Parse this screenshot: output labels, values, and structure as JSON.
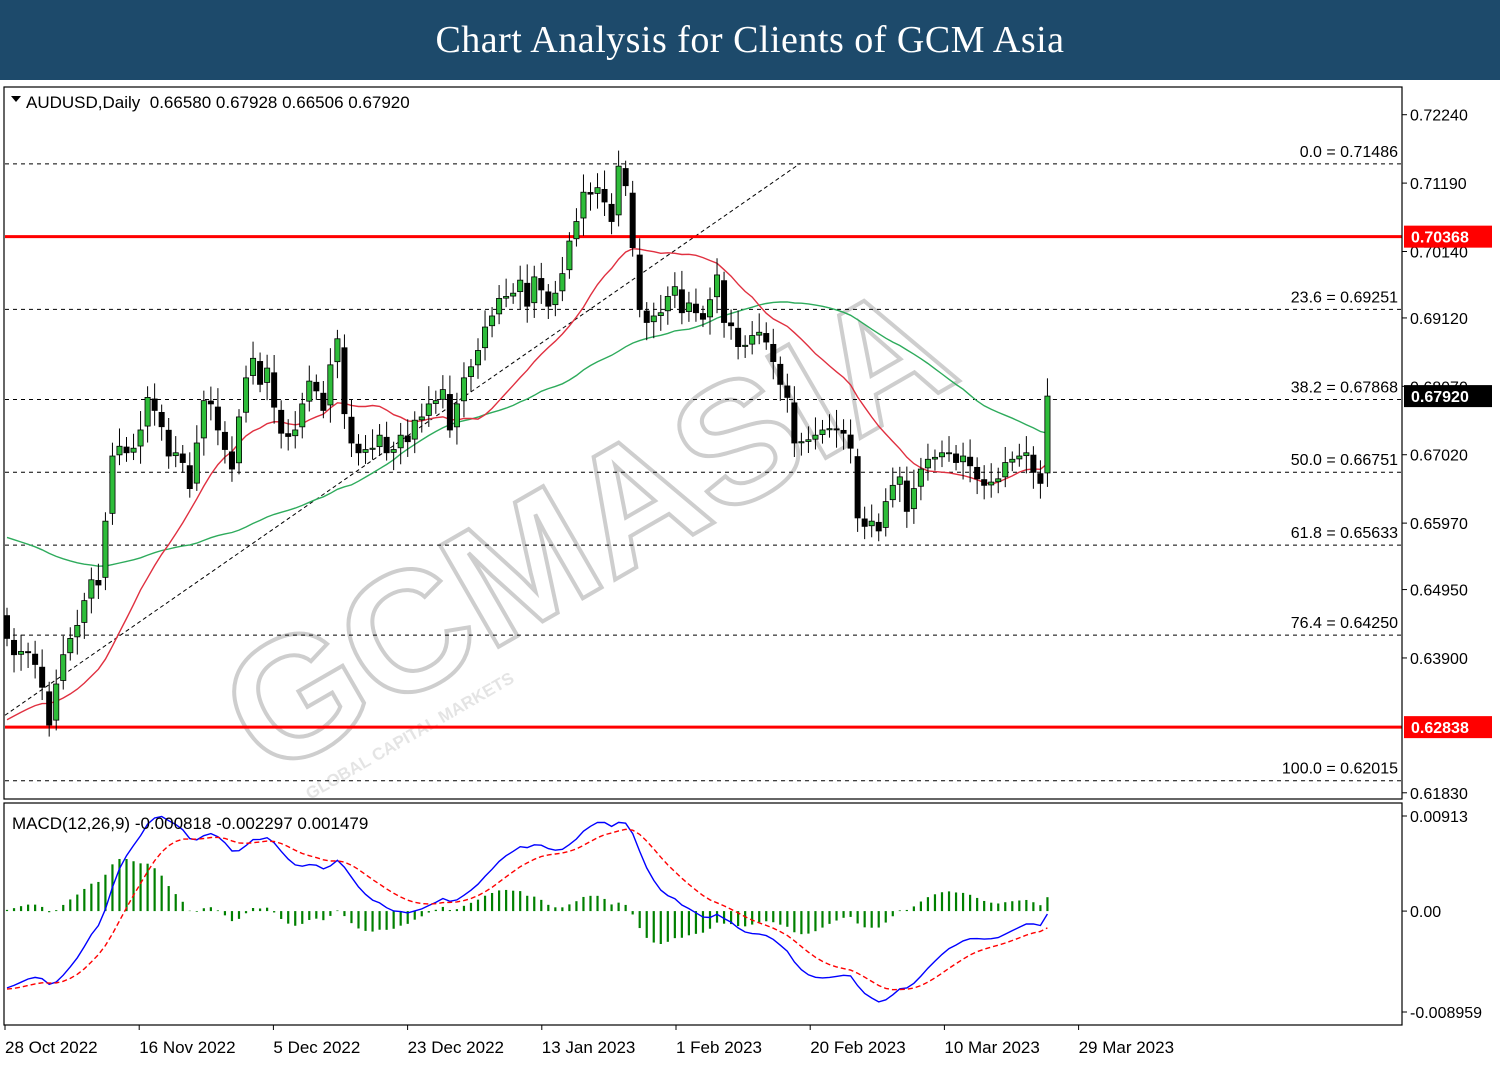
{
  "header": {
    "title": "Chart Analysis for Clients of GCM Asia"
  },
  "watermark": {
    "text": "GCMASIA",
    "subtext": "GLOBAL CAPITAL MARKETS"
  },
  "chart_data": {
    "type": "candlestick",
    "symbol_line": "AUDUSD,Daily  0.66580 0.67928 0.66506 0.67920",
    "price_axis": {
      "ylim": [
        0.6175,
        0.7265
      ],
      "ticks": [
        "0.72240",
        "0.71190",
        "0.70140",
        "0.69120",
        "0.68070",
        "0.67020",
        "0.65970",
        "0.64950",
        "0.63900",
        "0.61830"
      ]
    },
    "x_tick_labels": [
      "28 Oct 2022",
      "16 Nov 2022",
      "5 Dec 2022",
      "23 Dec 2022",
      "13 Jan 2023",
      "1 Feb 2023",
      "20 Feb 2023",
      "10 Mar 2023",
      "29 Mar 2023"
    ],
    "fibonacci": [
      {
        "label": "0.0 = 0.71486",
        "price": 0.71486
      },
      {
        "label": "23.6 = 0.69251",
        "price": 0.69251
      },
      {
        "label": "38.2 = 0.67868",
        "price": 0.67868
      },
      {
        "label": "50.0 = 0.66751",
        "price": 0.66751
      },
      {
        "label": "61.8 = 0.65633",
        "price": 0.65633
      },
      {
        "label": "76.4 = 0.64250",
        "price": 0.6425
      },
      {
        "label": "100.0 = 0.62015",
        "price": 0.62015
      }
    ],
    "resistance": {
      "label": "0.70368",
      "price": 0.70368,
      "color": "#ff0000"
    },
    "support": {
      "label": "0.62838",
      "price": 0.62838,
      "color": "#ff0000"
    },
    "current_price": {
      "label": "0.67920",
      "price": 0.6792
    },
    "closes": [
      0.642,
      0.6395,
      0.64,
      0.6398,
      0.638,
      0.6345,
      0.6287,
      0.635,
      0.6395,
      0.642,
      0.644,
      0.6478,
      0.651,
      0.6502,
      0.66,
      0.67,
      0.6715,
      0.6705,
      0.6712,
      0.674,
      0.679,
      0.677,
      0.6745,
      0.67,
      0.6705,
      0.669,
      0.665,
      0.672,
      0.6785,
      0.678,
      0.674,
      0.671,
      0.668,
      0.676,
      0.682,
      0.685,
      0.681,
      0.6835,
      0.6775,
      0.6735,
      0.673,
      0.674,
      0.678,
      0.6815,
      0.68,
      0.677,
      0.684,
      0.688,
      0.6765,
      0.672,
      0.6705,
      0.671,
      0.6712,
      0.6732,
      0.6705,
      0.671,
      0.6732,
      0.6722,
      0.6755,
      0.676,
      0.678,
      0.6785,
      0.6802,
      0.674,
      0.678,
      0.682,
      0.6837,
      0.6862,
      0.6898,
      0.6915,
      0.6942,
      0.6945,
      0.695,
      0.697,
      0.693,
      0.6975,
      0.6955,
      0.693,
      0.695,
      0.698,
      0.703,
      0.706,
      0.7105,
      0.7102,
      0.7112,
      0.709,
      0.706,
      0.7145,
      0.7115,
      0.702,
      0.6925,
      0.6905,
      0.6915,
      0.692,
      0.6945,
      0.696,
      0.692,
      0.6935,
      0.692,
      0.691,
      0.694,
      0.6978,
      0.6905,
      0.69,
      0.6868,
      0.687,
      0.6885,
      0.689,
      0.6875,
      0.6845,
      0.681,
      0.679,
      0.672,
      0.6722,
      0.6725,
      0.6732,
      0.674,
      0.6742,
      0.674,
      0.6735,
      0.6712,
      0.6605,
      0.6592,
      0.66,
      0.6585,
      0.663,
      0.6655,
      0.6668,
      0.6615,
      0.665,
      0.668,
      0.6695,
      0.6698,
      0.6705,
      0.6705,
      0.669,
      0.67,
      0.6685,
      0.6665,
      0.6655,
      0.666,
      0.6665,
      0.669,
      0.6695,
      0.67,
      0.6705,
      0.6675,
      0.6658,
      0.6792
    ],
    "sma_20_color": "#e03040",
    "sma_50_color": "#2eab5c",
    "macd": {
      "label": "MACD(12,26,9) -0.000818 -0.002297 0.001479",
      "ticks": [
        "0.00913",
        "0.00",
        "-0.008959"
      ],
      "ylim": [
        -0.0097,
        0.0092
      ],
      "main_color": "#0000ff",
      "signal_color": "#ff0000",
      "histogram_color": "#008000"
    }
  }
}
